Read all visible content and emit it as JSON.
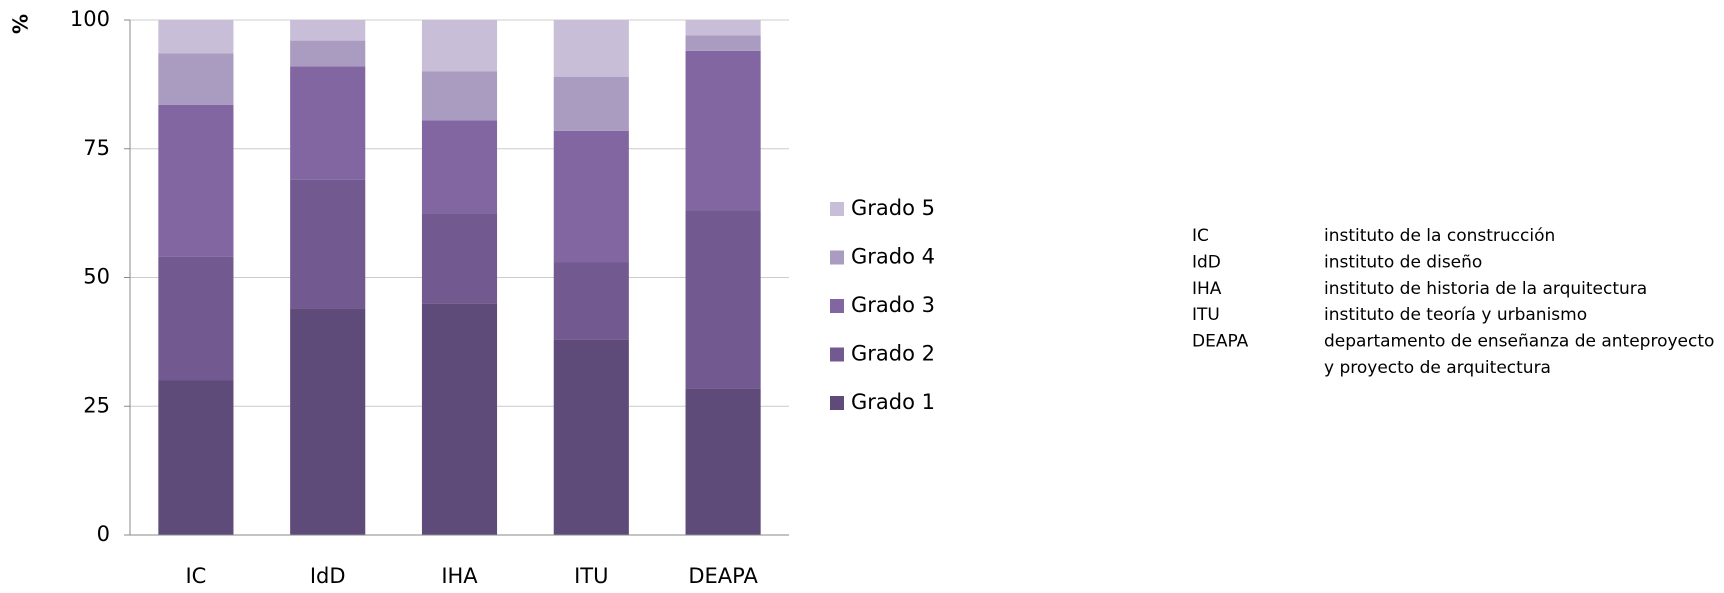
{
  "chart_data": {
    "type": "stacked-bar",
    "y_label": "%",
    "categories": [
      "IC",
      "IdD",
      "IHA",
      "ITU",
      "DEAPA"
    ],
    "series": [
      {
        "name": "Grado 1",
        "color": "#5f4b7a",
        "values": [
          30,
          44,
          45,
          38,
          28.5
        ]
      },
      {
        "name": "Grado 2",
        "color": "#725a91",
        "values": [
          24,
          25,
          17.5,
          15,
          34.5
        ]
      },
      {
        "name": "Grado 3",
        "color": "#8166a2",
        "values": [
          29.5,
          22,
          18,
          25.5,
          31
        ]
      },
      {
        "name": "Grado 4",
        "color": "#aa9bc0",
        "values": [
          10,
          5,
          9.5,
          10.5,
          3
        ]
      },
      {
        "name": "Grado 5",
        "color": "#c8bed8",
        "values": [
          6.5,
          4,
          10,
          11,
          3
        ]
      }
    ],
    "ylim": [
      0,
      100
    ],
    "yticks": [
      0,
      25,
      50,
      75,
      100
    ],
    "grid": true
  },
  "glossary": [
    {
      "abbr": "IC",
      "desc": [
        "instituto de la construcción"
      ]
    },
    {
      "abbr": "IdD",
      "desc": [
        "instituto de diseño"
      ]
    },
    {
      "abbr": "IHA",
      "desc": [
        "instituto de historia de la arquitectura"
      ]
    },
    {
      "abbr": "ITU",
      "desc": [
        "instituto de teoría y urbanismo"
      ]
    },
    {
      "abbr": "DEAPA",
      "desc": [
        "departamento de enseñanza de anteproyecto",
        "y proyecto de arquitectura"
      ]
    }
  ]
}
